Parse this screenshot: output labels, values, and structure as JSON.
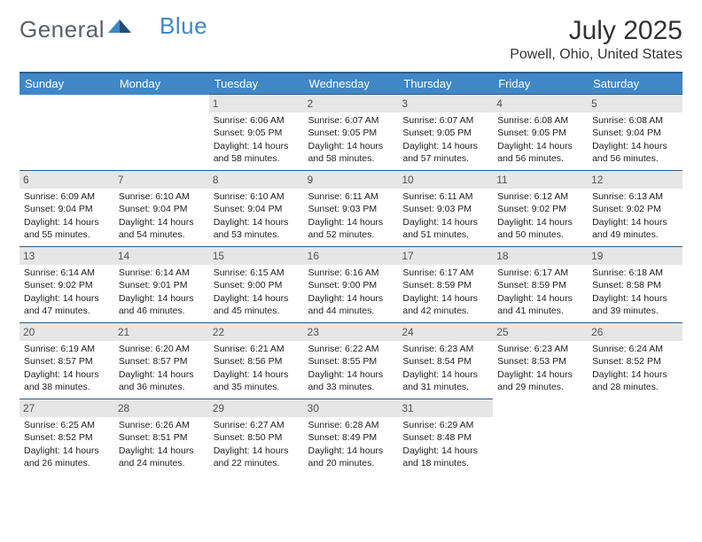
{
  "logo": {
    "text_general": "General",
    "text_blue": "Blue"
  },
  "title": "July 2025",
  "location": "Powell, Ohio, United States",
  "colors": {
    "header_bg": "#3f87c7",
    "header_border": "#2e5d8a",
    "daynum_bg": "#e6e6e6",
    "text": "#222222",
    "logo_gray": "#5a6168",
    "logo_blue": "#3f87c7"
  },
  "weekdays": [
    "Sunday",
    "Monday",
    "Tuesday",
    "Wednesday",
    "Thursday",
    "Friday",
    "Saturday"
  ],
  "weeks": [
    [
      null,
      null,
      {
        "d": "1",
        "sr": "6:06 AM",
        "ss": "9:05 PM",
        "dl": "14 hours and 58 minutes."
      },
      {
        "d": "2",
        "sr": "6:07 AM",
        "ss": "9:05 PM",
        "dl": "14 hours and 58 minutes."
      },
      {
        "d": "3",
        "sr": "6:07 AM",
        "ss": "9:05 PM",
        "dl": "14 hours and 57 minutes."
      },
      {
        "d": "4",
        "sr": "6:08 AM",
        "ss": "9:05 PM",
        "dl": "14 hours and 56 minutes."
      },
      {
        "d": "5",
        "sr": "6:08 AM",
        "ss": "9:04 PM",
        "dl": "14 hours and 56 minutes."
      }
    ],
    [
      {
        "d": "6",
        "sr": "6:09 AM",
        "ss": "9:04 PM",
        "dl": "14 hours and 55 minutes."
      },
      {
        "d": "7",
        "sr": "6:10 AM",
        "ss": "9:04 PM",
        "dl": "14 hours and 54 minutes."
      },
      {
        "d": "8",
        "sr": "6:10 AM",
        "ss": "9:04 PM",
        "dl": "14 hours and 53 minutes."
      },
      {
        "d": "9",
        "sr": "6:11 AM",
        "ss": "9:03 PM",
        "dl": "14 hours and 52 minutes."
      },
      {
        "d": "10",
        "sr": "6:11 AM",
        "ss": "9:03 PM",
        "dl": "14 hours and 51 minutes."
      },
      {
        "d": "11",
        "sr": "6:12 AM",
        "ss": "9:02 PM",
        "dl": "14 hours and 50 minutes."
      },
      {
        "d": "12",
        "sr": "6:13 AM",
        "ss": "9:02 PM",
        "dl": "14 hours and 49 minutes."
      }
    ],
    [
      {
        "d": "13",
        "sr": "6:14 AM",
        "ss": "9:02 PM",
        "dl": "14 hours and 47 minutes."
      },
      {
        "d": "14",
        "sr": "6:14 AM",
        "ss": "9:01 PM",
        "dl": "14 hours and 46 minutes."
      },
      {
        "d": "15",
        "sr": "6:15 AM",
        "ss": "9:00 PM",
        "dl": "14 hours and 45 minutes."
      },
      {
        "d": "16",
        "sr": "6:16 AM",
        "ss": "9:00 PM",
        "dl": "14 hours and 44 minutes."
      },
      {
        "d": "17",
        "sr": "6:17 AM",
        "ss": "8:59 PM",
        "dl": "14 hours and 42 minutes."
      },
      {
        "d": "18",
        "sr": "6:17 AM",
        "ss": "8:59 PM",
        "dl": "14 hours and 41 minutes."
      },
      {
        "d": "19",
        "sr": "6:18 AM",
        "ss": "8:58 PM",
        "dl": "14 hours and 39 minutes."
      }
    ],
    [
      {
        "d": "20",
        "sr": "6:19 AM",
        "ss": "8:57 PM",
        "dl": "14 hours and 38 minutes."
      },
      {
        "d": "21",
        "sr": "6:20 AM",
        "ss": "8:57 PM",
        "dl": "14 hours and 36 minutes."
      },
      {
        "d": "22",
        "sr": "6:21 AM",
        "ss": "8:56 PM",
        "dl": "14 hours and 35 minutes."
      },
      {
        "d": "23",
        "sr": "6:22 AM",
        "ss": "8:55 PM",
        "dl": "14 hours and 33 minutes."
      },
      {
        "d": "24",
        "sr": "6:23 AM",
        "ss": "8:54 PM",
        "dl": "14 hours and 31 minutes."
      },
      {
        "d": "25",
        "sr": "6:23 AM",
        "ss": "8:53 PM",
        "dl": "14 hours and 29 minutes."
      },
      {
        "d": "26",
        "sr": "6:24 AM",
        "ss": "8:52 PM",
        "dl": "14 hours and 28 minutes."
      }
    ],
    [
      {
        "d": "27",
        "sr": "6:25 AM",
        "ss": "8:52 PM",
        "dl": "14 hours and 26 minutes."
      },
      {
        "d": "28",
        "sr": "6:26 AM",
        "ss": "8:51 PM",
        "dl": "14 hours and 24 minutes."
      },
      {
        "d": "29",
        "sr": "6:27 AM",
        "ss": "8:50 PM",
        "dl": "14 hours and 22 minutes."
      },
      {
        "d": "30",
        "sr": "6:28 AM",
        "ss": "8:49 PM",
        "dl": "14 hours and 20 minutes."
      },
      {
        "d": "31",
        "sr": "6:29 AM",
        "ss": "8:48 PM",
        "dl": "14 hours and 18 minutes."
      },
      null,
      null
    ]
  ],
  "labels": {
    "sunrise": "Sunrise:",
    "sunset": "Sunset:",
    "daylight": "Daylight:"
  }
}
